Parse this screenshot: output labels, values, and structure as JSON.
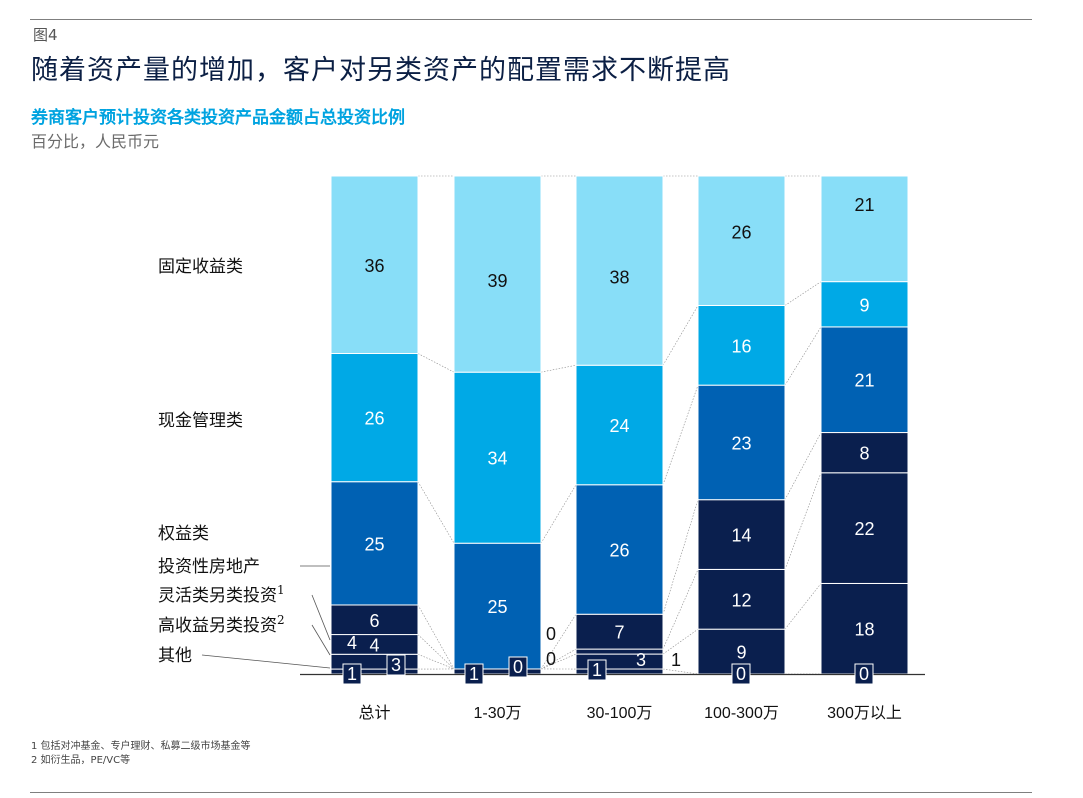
{
  "header": {
    "figure_no": "图4",
    "title": "随着资产量的增加，客户对另类资产的配置需求不断提高"
  },
  "chart_data": {
    "type": "bar",
    "stacked": true,
    "title": "券商客户预计投资各类投资产品金额占总投资比例",
    "unit": "百分比，人民币元",
    "categories": [
      "总计",
      "1-30万",
      "30-100万",
      "100-300万",
      "300万以上"
    ],
    "series": [
      {
        "name": "其他",
        "color": "#0a1f4e",
        "values": [
          1,
          1,
          1,
          0,
          0
        ]
      },
      {
        "name": "高收益另类投资2",
        "color": "#0a1f4e",
        "values": [
          3,
          0,
          3,
          9,
          18
        ]
      },
      {
        "name": "灵活类另类投资1",
        "color": "#0a1f4e",
        "values": [
          4,
          0,
          1,
          12,
          22
        ]
      },
      {
        "name": "投资性房地产",
        "color": "#0a1f4e",
        "values": [
          6,
          0,
          7,
          14,
          8
        ]
      },
      {
        "name": "权益类",
        "color": "#0061b3",
        "values": [
          25,
          25,
          26,
          23,
          21
        ]
      },
      {
        "name": "现金管理类",
        "color": "#00a9e6",
        "values": [
          26,
          34,
          24,
          16,
          9
        ]
      },
      {
        "name": "固定收益类",
        "color": "#88def8",
        "values": [
          36,
          39,
          38,
          26,
          21
        ]
      }
    ],
    "legend_placement": "left",
    "grid": false
  },
  "footnotes": [
    "1 包括对冲基金、专户理财、私募二级市场基金等",
    "2 如衍生品，PE/VC等"
  ]
}
